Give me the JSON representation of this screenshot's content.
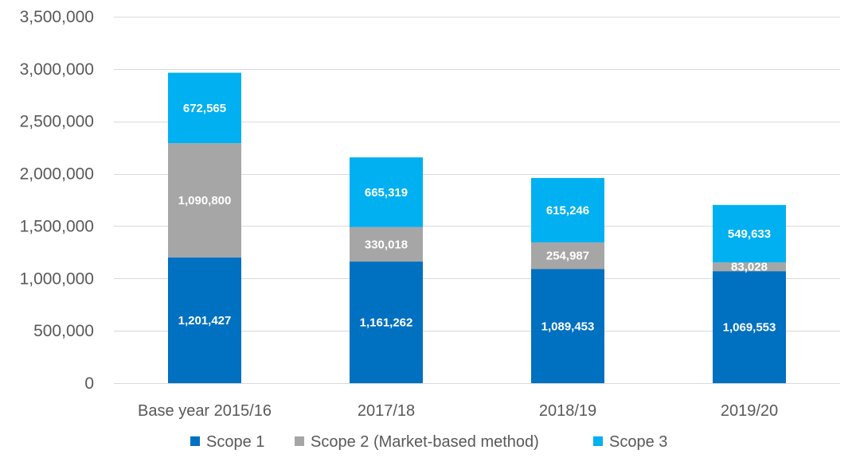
{
  "chart_data": {
    "type": "bar",
    "stacked": true,
    "categories": [
      "Base year 2015/16",
      "2017/18",
      "2018/19",
      "2019/20"
    ],
    "series": [
      {
        "name": "Scope 1",
        "color": "#0070c0",
        "values": [
          1201427,
          1161262,
          1089453,
          1069553
        ],
        "labels": [
          "1,201,427",
          "1,161,262",
          "1,089,453",
          "1,069,553"
        ]
      },
      {
        "name": "Scope 2 (Market-based method)",
        "color": "#a6a6a6",
        "values": [
          1090800,
          330018,
          254987,
          83028
        ],
        "labels": [
          "1,090,800",
          "330,018",
          "254,987",
          "83,028"
        ]
      },
      {
        "name": "Scope 3",
        "color": "#00b0f0",
        "values": [
          672565,
          665319,
          615246,
          549633
        ],
        "labels": [
          "672,565",
          "665,319",
          "615,246",
          "549,633"
        ]
      }
    ],
    "ylim": [
      0,
      3500000
    ],
    "yticks": [
      0,
      500000,
      1000000,
      1500000,
      2000000,
      2500000,
      3000000,
      3500000
    ],
    "ytick_labels": [
      "0",
      "500,000",
      "1,000,000",
      "1,500,000",
      "2,000,000",
      "2,500,000",
      "3,000,000",
      "3,500,000"
    ],
    "title": "",
    "xlabel": "",
    "ylabel": "",
    "grid": true,
    "legend_position": "bottom"
  }
}
